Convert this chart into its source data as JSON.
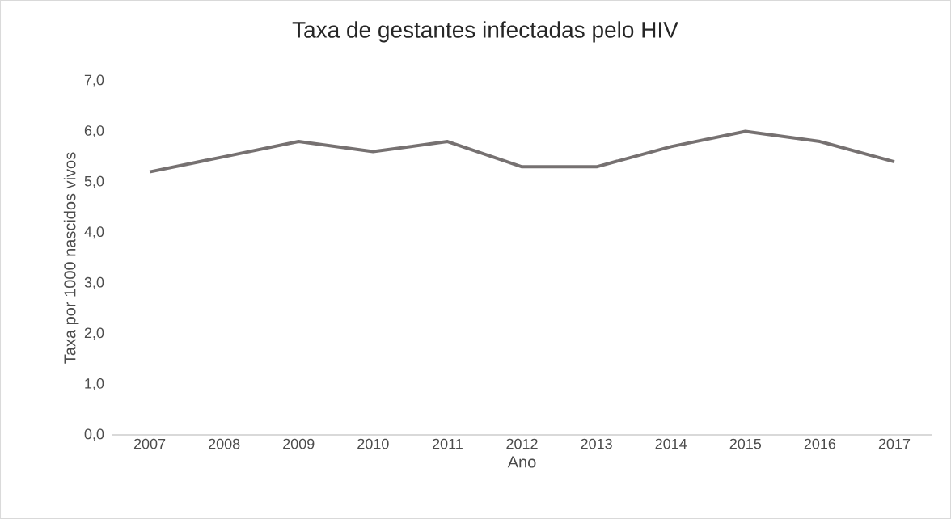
{
  "chart_data": {
    "type": "line",
    "title": "Taxa de gestantes infectadas pelo HIV",
    "xlabel": "Ano",
    "ylabel": "Taxa por 1000 nascidos vivos",
    "categories": [
      "2007",
      "2008",
      "2009",
      "2010",
      "2011",
      "2012",
      "2013",
      "2014",
      "2015",
      "2016",
      "2017"
    ],
    "series": [
      {
        "color": "#767171",
        "values": [
          5.2,
          5.5,
          5.8,
          5.6,
          5.8,
          5.3,
          5.3,
          5.7,
          6.0,
          5.8,
          5.4
        ]
      }
    ],
    "ylim": [
      0,
      7
    ],
    "yticks": [
      {
        "value": 0,
        "label": "0,0"
      },
      {
        "value": 1,
        "label": "1,0"
      },
      {
        "value": 2,
        "label": "2,0"
      },
      {
        "value": 3,
        "label": "3,0"
      },
      {
        "value": 4,
        "label": "4,0"
      },
      {
        "value": 5,
        "label": "5,0"
      },
      {
        "value": 6,
        "label": "6,0"
      },
      {
        "value": 7,
        "label": "7,0"
      }
    ],
    "marker": "none",
    "line_style": "solid"
  }
}
